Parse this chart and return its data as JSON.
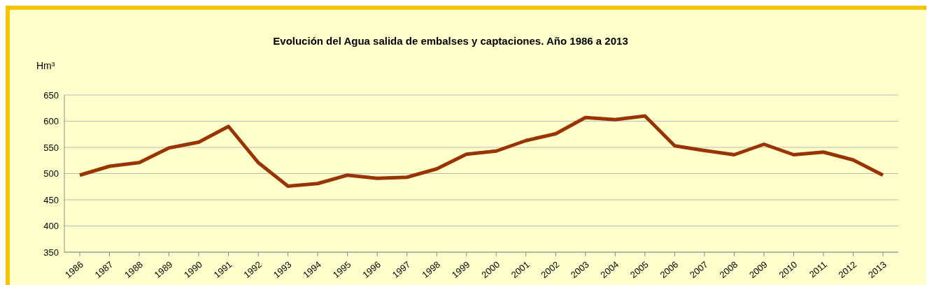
{
  "chart_data": {
    "type": "line",
    "title": "Evolución del Agua salida de embalses y captaciones. Año 1986 a 2013",
    "ylabel": "Hm³",
    "categories": [
      "1986",
      "1987",
      "1988",
      "1989",
      "1990",
      "1991",
      "1992",
      "1993",
      "1994",
      "1995",
      "1996",
      "1997",
      "1998",
      "1999",
      "2000",
      "2001",
      "2002",
      "2003",
      "2004",
      "2005",
      "2006",
      "2007",
      "2008",
      "2009",
      "2010",
      "2011",
      "2012",
      "2013"
    ],
    "series": [
      {
        "color": "#993300",
        "values": [
          497,
          514,
          521,
          549,
          560,
          590,
          521,
          476,
          481,
          497,
          491,
          493,
          509,
          537,
          543,
          563,
          576,
          607,
          603,
          610,
          553,
          544,
          536,
          556,
          536,
          541,
          526,
          497
        ]
      }
    ],
    "ylim": [
      350,
      650
    ],
    "yticks": [
      350,
      400,
      450,
      500,
      550,
      600,
      650
    ],
    "grid": "y",
    "legend": false,
    "marker": "none",
    "line_style": "solid"
  }
}
